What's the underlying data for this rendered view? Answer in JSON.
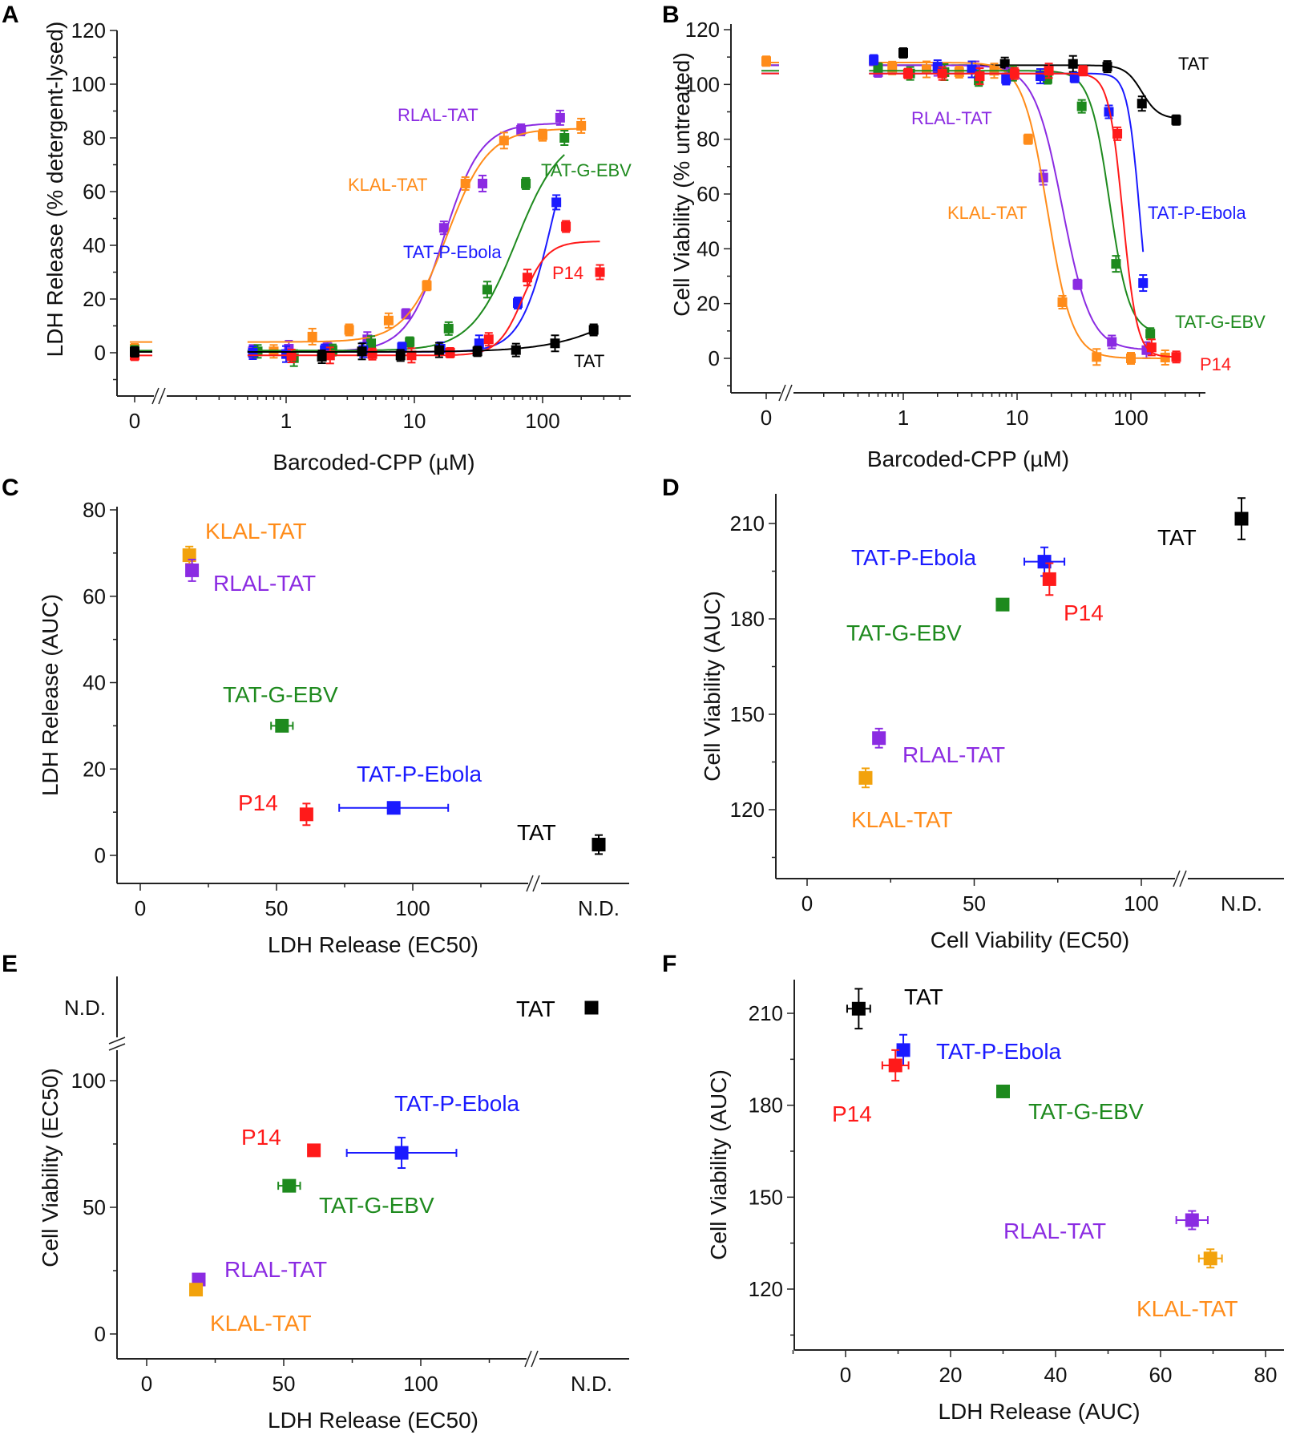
{
  "figure": {
    "panels": [
      "A",
      "B",
      "C",
      "D",
      "E",
      "F"
    ]
  },
  "colors": {
    "TAT": "#000000",
    "RLAL-TAT": "#8b2be2",
    "KLAL-TAT": "#ff8c1a",
    "TAT-G-EBV": "#1e8a1e",
    "TAT-P-Ebola": "#1a1aff",
    "P14": "#ff1a1a",
    "KLAL-TAT-scatter": "#f2a20c"
  },
  "chart_data": [
    {
      "panel": "A",
      "type": "line",
      "title": "",
      "xlabel": "Barcoded-CPP (µM)",
      "ylabel": "LDH Release (% detergent-lysed)",
      "xscale": "log (with broken axis at 0)",
      "xticks": [
        "0",
        "1",
        "10",
        "100"
      ],
      "yticks": [
        "0",
        "20",
        "40",
        "60",
        "80",
        "100",
        "120"
      ],
      "ylim": [
        -15,
        125
      ],
      "x_break": true,
      "series": [
        {
          "name": "RLAL-TAT",
          "label": "RLAL-TAT",
          "x": [
            0,
            0.55,
            1.05,
            2.1,
            4.3,
            8.6,
            17,
            34,
            68,
            137
          ],
          "y": [
            0.5,
            0.5,
            1.5,
            2,
            5,
            14.5,
            46.5,
            63,
            83,
            87.5
          ],
          "fit": {
            "bottom": 0.5,
            "top": 85.5,
            "ec50": 17,
            "hill": 3.0
          }
        },
        {
          "name": "KLAL-TAT",
          "label": "KLAL-TAT",
          "x": [
            0,
            0.8,
            1.6,
            3.1,
            6.3,
            12.5,
            25,
            50,
            100,
            200
          ],
          "y": [
            1.5,
            0.5,
            6,
            8.5,
            12,
            25,
            63,
            79,
            81,
            84.5
          ],
          "fit": {
            "bottom": 4,
            "top": 83.5,
            "ec50": 18,
            "hill": 2.7
          }
        },
        {
          "name": "TAT-G-EBV",
          "label": "TAT-G-EBV",
          "x": [
            0,
            0.6,
            1.15,
            2.3,
            4.6,
            9.2,
            18.5,
            37,
            74,
            148
          ],
          "y": [
            0.8,
            0.5,
            -2,
            1,
            3.5,
            4,
            9,
            23.5,
            63,
            80
          ],
          "fit": {
            "bottom": 0.8,
            "top": 82,
            "ec50": 62,
            "hill": 2.5
          }
        },
        {
          "name": "TAT-P-Ebola",
          "label": "TAT-P-Ebola",
          "x": [
            0,
            0.55,
            1.0,
            2.0,
            4.0,
            8.0,
            16,
            32,
            64,
            128
          ],
          "y": [
            0.3,
            0,
            -0.5,
            1,
            1,
            2,
            1.5,
            3.5,
            18.5,
            56
          ],
          "fit": {
            "bottom": 0.3,
            "top": 100,
            "ec50": 120,
            "hill": 3.5
          }
        },
        {
          "name": "P14",
          "label": "P14",
          "x": [
            0,
            1.1,
            2.2,
            4.7,
            9.5,
            19,
            38,
            76,
            152,
            280
          ],
          "y": [
            -1,
            -1.2,
            -1,
            -0.5,
            -1,
            0,
            5,
            28,
            47,
            30
          ],
          "fit": {
            "bottom": -1,
            "top": 41.5,
            "ec50": 70,
            "hill": 4.5
          }
        },
        {
          "name": "TAT",
          "label": "TAT",
          "x": [
            0,
            1.9,
            3.9,
            7.8,
            15.6,
            31,
            62,
            125,
            250
          ],
          "y": [
            0.3,
            -1.5,
            0.5,
            -1,
            1,
            0.5,
            1,
            3.5,
            8.5
          ],
          "fit": {
            "bottom": 0.3,
            "top": 30,
            "ec50": 500,
            "hill": 1.5
          }
        }
      ]
    },
    {
      "panel": "B",
      "type": "line",
      "title": "",
      "xlabel": "Barcoded-CPP (µM)",
      "ylabel": "Cell Viability (% untreated)",
      "xscale": "log (with broken axis at 0)",
      "xticks": [
        "0",
        "1",
        "10",
        "100"
      ],
      "yticks": [
        "0",
        "20",
        "40",
        "60",
        "80",
        "100",
        "120"
      ],
      "ylim": [
        -15,
        125
      ],
      "x_break": true,
      "series": [
        {
          "name": "TAT",
          "label": "TAT",
          "x": [
            1.0,
            7.8,
            31,
            62,
            125,
            250
          ],
          "y": [
            111.5,
            107.5,
            107.5,
            106.5,
            93,
            87
          ],
          "fit": {
            "top": 107,
            "bottom": 87.5,
            "ec50": 125,
            "hill": 6
          }
        },
        {
          "name": "RLAL-TAT",
          "label": "RLAL-TAT",
          "x": [
            0.6,
            2.0,
            4.3,
            8.6,
            17,
            34,
            68,
            137
          ],
          "y": [
            104.5,
            105.5,
            105.5,
            104,
            66,
            27,
            6,
            3
          ],
          "fit": {
            "top": 107,
            "bottom": 3,
            "ec50": 25,
            "hill": 3.5
          }
        },
        {
          "name": "KLAL-TAT",
          "label": "KLAL-TAT",
          "x": [
            0,
            0.8,
            1.6,
            3.1,
            6.3,
            12.5,
            25,
            50,
            100,
            200
          ],
          "y": [
            108.5,
            106,
            105.5,
            104.5,
            105,
            80,
            20.5,
            0.5,
            0,
            0.3
          ],
          "fit": {
            "top": 108,
            "bottom": 0,
            "ec50": 18.5,
            "hill": 4
          }
        },
        {
          "name": "TAT-G-EBV",
          "label": "TAT-G-EBV",
          "x": [
            0.6,
            1.15,
            2.3,
            4.6,
            9.2,
            18.5,
            37,
            74,
            148
          ],
          "y": [
            106,
            104,
            104.5,
            101.5,
            104,
            102,
            92,
            34.5,
            9
          ],
          "fit": {
            "top": 105,
            "bottom": 9,
            "ec50": 65,
            "hill": 5
          }
        },
        {
          "name": "TAT-P-Ebola",
          "label": "TAT-P-Ebola",
          "x": [
            0.55,
            2.0,
            4.0,
            8.0,
            16,
            32,
            64,
            128
          ],
          "y": [
            109,
            106.5,
            105.5,
            102,
            103,
            102.5,
            90,
            27.5
          ],
          "fit": {
            "top": 104,
            "bottom": 0,
            "ec50": 120,
            "hill": 8
          }
        },
        {
          "name": "P14",
          "label": "P14",
          "x": [
            1.1,
            2.2,
            4.7,
            9.5,
            19,
            38,
            76,
            152,
            250
          ],
          "y": [
            104,
            104,
            103,
            104,
            105,
            105,
            82,
            4,
            0.5
          ],
          "fit": {
            "top": 104,
            "bottom": 0.5,
            "ec50": 85,
            "hill": 7
          }
        }
      ]
    },
    {
      "panel": "C",
      "type": "scatter",
      "title": "",
      "xlabel": "LDH Release (EC50)",
      "ylabel": "LDH Release (AUC)",
      "xticks": [
        "0",
        "50",
        "100",
        "N.D."
      ],
      "yticks": [
        "0",
        "20",
        "40",
        "60",
        "80"
      ],
      "xlim": [
        -10,
        140
      ],
      "ylim": [
        -5,
        80
      ],
      "x_break": true,
      "points": [
        {
          "name": "KLAL-TAT",
          "x": 18,
          "y": 69.5,
          "xerr": 0,
          "yerr": 2
        },
        {
          "name": "RLAL-TAT",
          "x": 19,
          "y": 66,
          "xerr": 0,
          "yerr": 2.5
        },
        {
          "name": "TAT-G-EBV",
          "x": 52,
          "y": 30,
          "xerr": 4,
          "yerr": 0.5
        },
        {
          "name": "P14",
          "x": 61,
          "y": 9.5,
          "xerr": 0,
          "yerr": 2.5
        },
        {
          "name": "TAT-P-Ebola",
          "x": 93,
          "y": 11,
          "xerr": 20,
          "yerr": 0.5
        },
        {
          "name": "TAT",
          "x": "N.D.",
          "y": 2.5,
          "xerr": 0,
          "yerr": 2.2
        }
      ]
    },
    {
      "panel": "D",
      "type": "scatter",
      "title": "",
      "xlabel": "Cell Viability (EC50)",
      "ylabel": "Cell Viability (AUC)",
      "xticks": [
        "0",
        "50",
        "100",
        "N.D."
      ],
      "yticks": [
        "120",
        "150",
        "180",
        "210"
      ],
      "xlim": [
        -10,
        140
      ],
      "ylim": [
        104,
        219
      ],
      "x_break": true,
      "points": [
        {
          "name": "TAT",
          "x": "N.D.",
          "y": 211.5,
          "xerr": 0,
          "yerr": 6.5
        },
        {
          "name": "TAT-P-Ebola",
          "x": 71,
          "y": 198,
          "xerr": 6,
          "yerr": 4.5
        },
        {
          "name": "P14",
          "x": 72.5,
          "y": 192.5,
          "xerr": 0,
          "yerr": 5
        },
        {
          "name": "TAT-G-EBV",
          "x": 58.5,
          "y": 184.5,
          "xerr": 0,
          "yerr": 1.5
        },
        {
          "name": "RLAL-TAT",
          "x": 21.5,
          "y": 142.5,
          "xerr": 0,
          "yerr": 3
        },
        {
          "name": "KLAL-TAT",
          "x": 17.5,
          "y": 130,
          "xerr": 0,
          "yerr": 3
        }
      ]
    },
    {
      "panel": "E",
      "type": "scatter",
      "title": "",
      "xlabel": "LDH Release (EC50)",
      "ylabel": "Cell Viability (EC50)",
      "xticks": [
        "0",
        "50",
        "100",
        "N.D."
      ],
      "yticks": [
        "0",
        "50",
        "100",
        "N.D."
      ],
      "xlim": [
        -10,
        140
      ],
      "ylim": [
        -5,
        130
      ],
      "x_break": true,
      "y_break": true,
      "points": [
        {
          "name": "TAT",
          "x": "N.D.",
          "y": "N.D.",
          "xerr": 0,
          "yerr": 0
        },
        {
          "name": "TAT-P-Ebola",
          "x": 93,
          "y": 71.5,
          "xerr": 20,
          "yerr": 6
        },
        {
          "name": "P14",
          "x": 61,
          "y": 72.5,
          "xerr": 0,
          "yerr": 0
        },
        {
          "name": "TAT-G-EBV",
          "x": 52,
          "y": 58.5,
          "xerr": 4,
          "yerr": 0.5
        },
        {
          "name": "RLAL-TAT",
          "x": 19,
          "y": 21.5,
          "xerr": 0,
          "yerr": 0
        },
        {
          "name": "KLAL-TAT",
          "x": 18,
          "y": 17.5,
          "xerr": 0,
          "yerr": 0
        }
      ]
    },
    {
      "panel": "F",
      "type": "scatter",
      "title": "",
      "xlabel": "LDH Release (AUC)",
      "ylabel": "Cell Viability (AUC)",
      "xticks": [
        "0",
        "20",
        "40",
        "60",
        "80"
      ],
      "yticks": [
        "120",
        "150",
        "180",
        "210"
      ],
      "xlim": [
        -10,
        80
      ],
      "ylim": [
        105,
        220
      ],
      "points": [
        {
          "name": "TAT",
          "x": 2.5,
          "y": 211.5,
          "xerr": 2.2,
          "yerr": 6.5
        },
        {
          "name": "TAT-P-Ebola",
          "x": 11,
          "y": 198,
          "xerr": 0.5,
          "yerr": 5
        },
        {
          "name": "P14",
          "x": 9.5,
          "y": 193,
          "xerr": 2.5,
          "yerr": 5
        },
        {
          "name": "TAT-G-EBV",
          "x": 30,
          "y": 184.5,
          "xerr": 0.5,
          "yerr": 1.5
        },
        {
          "name": "RLAL-TAT",
          "x": 66,
          "y": 142.5,
          "xerr": 3,
          "yerr": 3
        },
        {
          "name": "KLAL-TAT",
          "x": 69.5,
          "y": 130,
          "xerr": 2.2,
          "yerr": 3
        }
      ]
    }
  ],
  "labels": {
    "A": {
      "RLAL-TAT": {
        "text": "RLAL-TAT"
      },
      "KLAL-TAT": {
        "text": "KLAL-TAT"
      },
      "TAT-G-EBV": {
        "text": "TAT-G-EBV"
      },
      "TAT-P-Ebola": {
        "text": "TAT-P-Ebola"
      },
      "P14": {
        "text": "P14"
      },
      "TAT": {
        "text": "TAT"
      }
    }
  }
}
